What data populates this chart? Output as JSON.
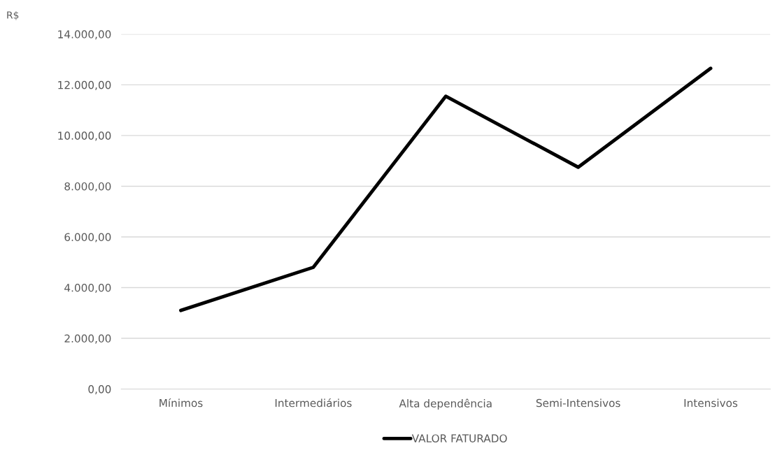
{
  "chart_data": {
    "type": "line",
    "ylabel": "R$",
    "categories": [
      "Mínimos",
      "Intermediários",
      "Alta dependência",
      "Semi-Intensivos",
      "Intensivos"
    ],
    "series": [
      {
        "name": "VALOR FATURADO",
        "color": "#000000",
        "values": [
          3100,
          4800,
          11550,
          8750,
          12650
        ]
      }
    ],
    "ylim": [
      0,
      14000
    ],
    "yticks": [
      {
        "value": 0,
        "label": "0,00"
      },
      {
        "value": 2000,
        "label": "2.000,00"
      },
      {
        "value": 4000,
        "label": "4.000,00"
      },
      {
        "value": 6000,
        "label": "6.000,00"
      },
      {
        "value": 8000,
        "label": "8.000,00"
      },
      {
        "value": 10000,
        "label": "10.000,00"
      },
      {
        "value": 12000,
        "label": "12.000,00"
      },
      {
        "value": 14000,
        "label": "14.000,00"
      }
    ],
    "grid": "y",
    "legend": "bottom",
    "marker": "none",
    "line_style": "solid"
  }
}
